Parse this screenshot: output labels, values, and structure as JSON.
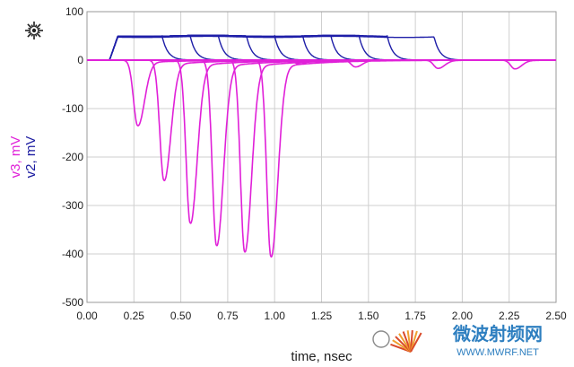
{
  "chart_data": {
    "type": "line",
    "xlabel": "time, nsec",
    "ylabel_series": [
      {
        "text": "v3, mV",
        "color": "#e020d8"
      },
      {
        "text": "v2, mV",
        "color": "#1a1aa0"
      }
    ],
    "xlim": [
      0,
      2.5
    ],
    "ylim": [
      -500,
      100
    ],
    "x_ticks": [
      "0.00",
      "0.25",
      "0.50",
      "0.75",
      "1.00",
      "1.25",
      "1.50",
      "1.75",
      "2.00",
      "2.25",
      "2.50"
    ],
    "y_ticks": [
      "100",
      "0",
      "-100",
      "-200",
      "-300",
      "-400",
      "-500"
    ],
    "grid": true,
    "v2_pulses": [
      {
        "rise": 0.12,
        "fall": 0.4,
        "high": 50
      },
      {
        "rise": 0.12,
        "fall": 0.55,
        "high": 50
      },
      {
        "rise": 0.12,
        "fall": 0.7,
        "high": 50
      },
      {
        "rise": 0.12,
        "fall": 0.85,
        "high": 50
      },
      {
        "rise": 0.12,
        "fall": 1.0,
        "high": 50
      },
      {
        "rise": 0.12,
        "fall": 1.15,
        "high": 50
      },
      {
        "rise": 0.12,
        "fall": 1.3,
        "high": 50
      },
      {
        "rise": 0.12,
        "fall": 1.45,
        "high": 50
      },
      {
        "rise": 0.12,
        "fall": 1.6,
        "high": 50
      },
      {
        "rise": 0.12,
        "fall": 1.85,
        "high": 48
      }
    ],
    "v3_dips": [
      {
        "t": 0.27,
        "min": -135
      },
      {
        "t": 0.41,
        "min": -248
      },
      {
        "t": 0.55,
        "min": -336
      },
      {
        "t": 0.69,
        "min": -382
      },
      {
        "t": 0.84,
        "min": -395
      },
      {
        "t": 0.98,
        "min": -405
      },
      {
        "t": 1.13,
        "min": -8
      },
      {
        "t": 1.43,
        "min": -14
      },
      {
        "t": 1.87,
        "min": -17
      },
      {
        "t": 2.28,
        "min": -18
      }
    ]
  },
  "logo": {
    "name": "keysight-logo-icon",
    "color": "#1f1f1f"
  },
  "watermark": {
    "cn": "微波射频网",
    "en": "WWW.MWRF.NET",
    "color": "#2e7fc0"
  }
}
